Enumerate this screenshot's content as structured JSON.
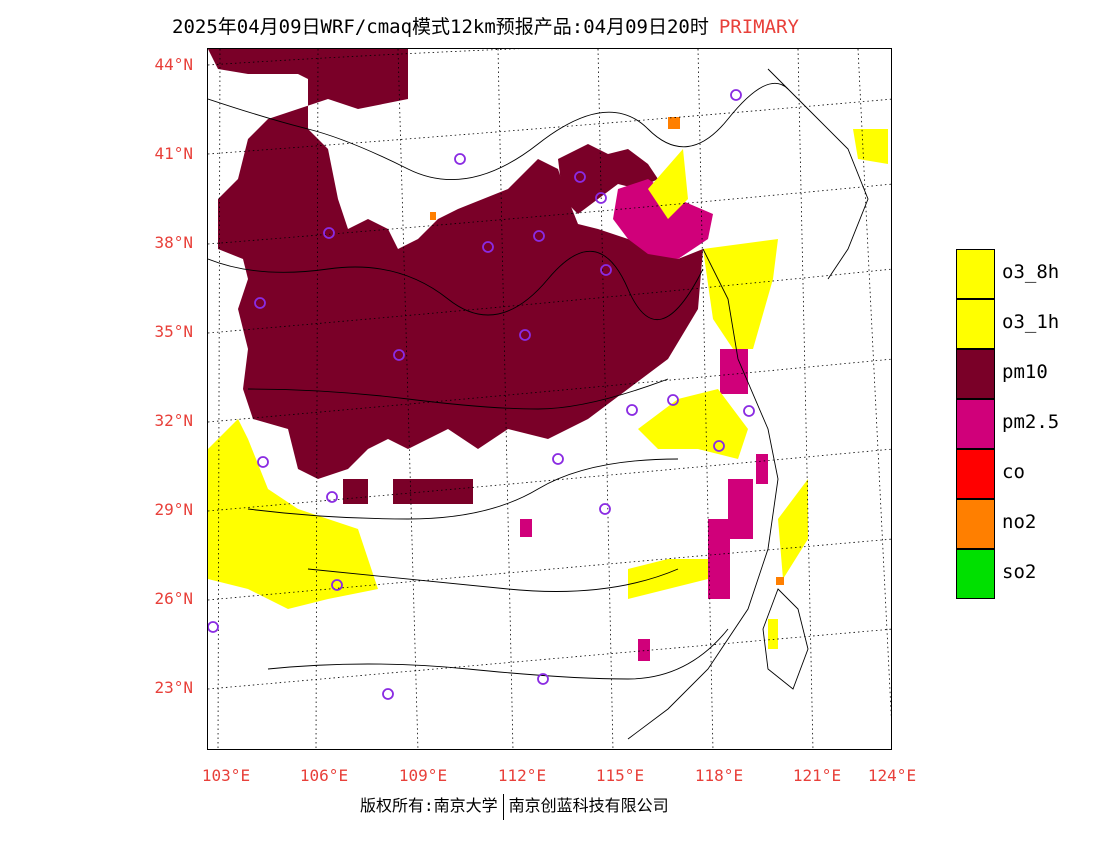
{
  "title": {
    "main": "2025年04月09日WRF/cmaq模式12km预报产品:04月09日20时",
    "tag": "PRIMARY"
  },
  "axes": {
    "lat_labels": [
      "44°N",
      "41°N",
      "38°N",
      "35°N",
      "32°N",
      "29°N",
      "26°N",
      "23°N"
    ],
    "lon_labels": [
      "103°E",
      "106°E",
      "109°E",
      "112°E",
      "115°E",
      "118°E",
      "121°E",
      "124°E"
    ]
  },
  "legend": [
    {
      "label": "o3_8h",
      "color": "#ffff00"
    },
    {
      "label": "o3_1h",
      "color": "#ffff00"
    },
    {
      "label": "pm10",
      "color": "#7a0028"
    },
    {
      "label": "pm2.5",
      "color": "#d0007a"
    },
    {
      "label": "co",
      "color": "#ff0000"
    },
    {
      "label": "no2",
      "color": "#ff7f00"
    },
    {
      "label": "so2",
      "color": "#00e000"
    }
  ],
  "colors": {
    "pm10": "#7a0028",
    "pm25": "#d0007a",
    "o3": "#ffff00",
    "no2": "#ff7f00",
    "station": "#8a2be2",
    "label": "#e8403a"
  },
  "copyright": {
    "left": "版权所有:南京大学",
    "right": "南京创蓝科技有限公司"
  }
}
